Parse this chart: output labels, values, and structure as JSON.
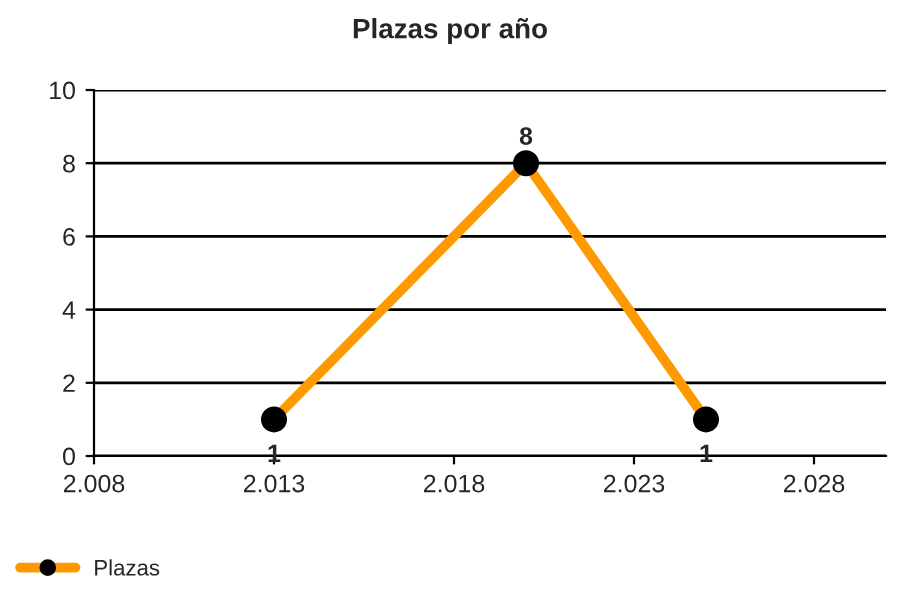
{
  "chart_data": {
    "type": "line",
    "title": "Plazas por año",
    "x": [
      2013,
      2020,
      2025
    ],
    "series": [
      {
        "name": "Plazas",
        "color": "#ff9900",
        "values": [
          1,
          8,
          1
        ]
      }
    ],
    "xlim": [
      2008,
      2030
    ],
    "xticks": [
      {
        "value": 2008,
        "label": "2.008"
      },
      {
        "value": 2013,
        "label": "2.013"
      },
      {
        "value": 2018,
        "label": "2.018"
      },
      {
        "value": 2023,
        "label": "2.023"
      },
      {
        "value": 2028,
        "label": "2.028"
      }
    ],
    "ylim": [
      0,
      10
    ],
    "yticks": [
      0,
      2,
      4,
      6,
      8,
      10
    ],
    "grid": "y",
    "legend": "bottom left",
    "marker": "circle",
    "line_style": "solid",
    "data_labels": true
  }
}
